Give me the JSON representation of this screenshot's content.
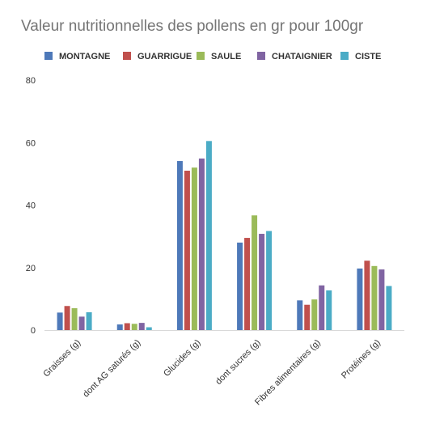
{
  "chart_data": {
    "type": "bar",
    "title": "Valeur nutritionnelles des pollens en gr pour 100gr",
    "xlabel": "",
    "ylabel": "",
    "ylim": [
      0,
      80
    ],
    "yticks": [
      0,
      20,
      40,
      60,
      80
    ],
    "grid": false,
    "legend_position": "top",
    "categories": [
      "Graisses (g)",
      "dont AG saturés (g)",
      "Glucides (g)",
      "dont sucres (g)",
      "Fibres alimentaires (g)",
      "Protéines (g)"
    ],
    "series": [
      {
        "name": "MONTAGNE",
        "color": "#4e79b9",
        "values": [
          5.6,
          1.8,
          54.1,
          28.0,
          9.5,
          19.7
        ]
      },
      {
        "name": "GUARRIGUE",
        "color": "#c0504d",
        "values": [
          7.7,
          2.2,
          51.0,
          29.5,
          8.1,
          22.2
        ]
      },
      {
        "name": "SAULE",
        "color": "#9bbb59",
        "values": [
          7.0,
          2.0,
          52.0,
          36.7,
          9.8,
          20.5
        ]
      },
      {
        "name": "CHATAIGNIER",
        "color": "#8064a2",
        "values": [
          4.3,
          2.3,
          54.9,
          30.8,
          14.3,
          19.4
        ]
      },
      {
        "name": "CISTE",
        "color": "#4bacc6",
        "values": [
          5.7,
          0.9,
          60.5,
          31.7,
          12.7,
          14.1
        ]
      }
    ]
  }
}
